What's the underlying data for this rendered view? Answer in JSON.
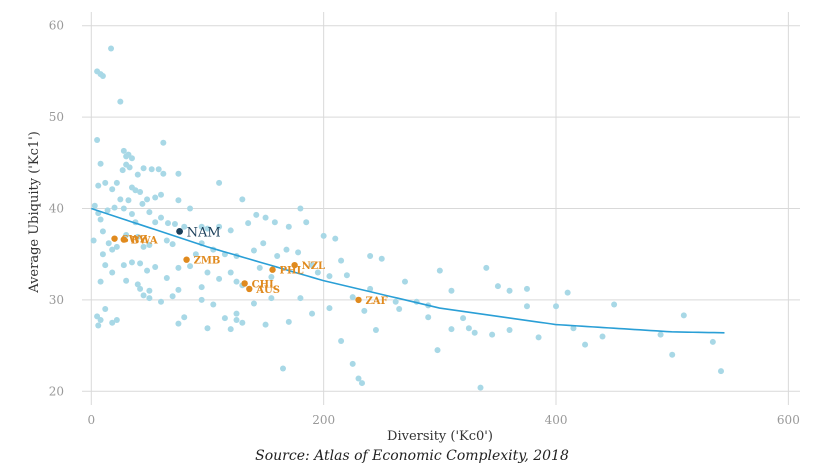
{
  "caption": "Source: Atlas of Economic Complexity, 2018",
  "colors": {
    "background": "#ffffff",
    "grid": "#d9d9d9",
    "point": "#a8d8e6",
    "highlight": "#e08a1e",
    "focus": "#1c3f5a",
    "fit": "#2a9fd6"
  },
  "chart_data": {
    "type": "scatter",
    "title": "",
    "xlabel": "Diversity ('Kc0')",
    "ylabel": "Average Ubiquity ('Kc1')",
    "xlim": [
      -8,
      610
    ],
    "ylim": [
      18.5,
      61.5
    ],
    "xticks": [
      0,
      200,
      400,
      600
    ],
    "yticks": [
      20,
      30,
      40,
      50,
      60
    ],
    "grid": true,
    "legend": "none",
    "fit_line": {
      "type": "quadratic",
      "x": [
        0,
        100,
        200,
        300,
        400,
        500,
        545
      ],
      "y": [
        40.0,
        35.8,
        32.1,
        29.1,
        27.3,
        26.5,
        26.4
      ]
    },
    "focus": [
      {
        "label": "NAM",
        "x": 76,
        "y": 37.5
      }
    ],
    "highlighted": [
      {
        "label": "BWA",
        "x": 28,
        "y": 36.6
      },
      {
        "label": "SWZ",
        "x": 20,
        "y": 36.7
      },
      {
        "label": "ZMB",
        "x": 82,
        "y": 34.4
      },
      {
        "label": "NZL",
        "x": 175,
        "y": 33.8
      },
      {
        "label": "PHL",
        "x": 156,
        "y": 33.3
      },
      {
        "label": "CHL",
        "x": 132,
        "y": 31.8
      },
      {
        "label": "AUS",
        "x": 136,
        "y": 31.2
      },
      {
        "label": "ZAF",
        "x": 230,
        "y": 30.0
      }
    ],
    "points": [
      [
        5,
        55.0
      ],
      [
        8,
        54.7
      ],
      [
        10,
        54.5
      ],
      [
        17,
        57.5
      ],
      [
        25,
        51.7
      ],
      [
        62,
        47.2
      ],
      [
        5,
        47.5
      ],
      [
        8,
        44.9
      ],
      [
        12,
        42.8
      ],
      [
        22,
        42.8
      ],
      [
        28,
        46.3
      ],
      [
        30,
        45.7
      ],
      [
        32,
        45.9
      ],
      [
        35,
        45.5
      ],
      [
        30,
        44.8
      ],
      [
        33,
        44.5
      ],
      [
        40,
        43.7
      ],
      [
        27,
        44.2
      ],
      [
        45,
        44.4
      ],
      [
        52,
        44.3
      ],
      [
        58,
        44.3
      ],
      [
        62,
        43.8
      ],
      [
        75,
        43.8
      ],
      [
        110,
        42.8
      ],
      [
        6,
        42.5
      ],
      [
        18,
        42.1
      ],
      [
        35,
        42.3
      ],
      [
        38,
        42.0
      ],
      [
        42,
        41.8
      ],
      [
        48,
        41.0
      ],
      [
        55,
        41.2
      ],
      [
        60,
        41.5
      ],
      [
        32,
        40.9
      ],
      [
        75,
        40.9
      ],
      [
        85,
        40.0
      ],
      [
        130,
        41.0
      ],
      [
        180,
        40.0
      ],
      [
        3,
        40.3
      ],
      [
        6,
        39.5
      ],
      [
        8,
        38.8
      ],
      [
        14,
        39.8
      ],
      [
        20,
        40.1
      ],
      [
        25,
        41.0
      ],
      [
        28,
        40.0
      ],
      [
        35,
        39.4
      ],
      [
        38,
        38.5
      ],
      [
        44,
        40.5
      ],
      [
        50,
        39.6
      ],
      [
        55,
        38.5
      ],
      [
        60,
        39.0
      ],
      [
        66,
        38.4
      ],
      [
        72,
        38.3
      ],
      [
        80,
        38.0
      ],
      [
        95,
        38.0
      ],
      [
        100,
        37.8
      ],
      [
        110,
        38.0
      ],
      [
        120,
        37.6
      ],
      [
        135,
        38.4
      ],
      [
        142,
        39.3
      ],
      [
        150,
        39.0
      ],
      [
        158,
        38.5
      ],
      [
        170,
        38.0
      ],
      [
        185,
        38.5
      ],
      [
        200,
        37.0
      ],
      [
        210,
        36.7
      ],
      [
        2,
        36.5
      ],
      [
        10,
        37.5
      ],
      [
        15,
        36.2
      ],
      [
        22,
        35.8
      ],
      [
        30,
        37.1
      ],
      [
        40,
        36.9
      ],
      [
        45,
        35.8
      ],
      [
        50,
        36.0
      ],
      [
        65,
        36.5
      ],
      [
        70,
        36.1
      ],
      [
        90,
        35.0
      ],
      [
        95,
        36.2
      ],
      [
        105,
        35.5
      ],
      [
        115,
        35.0
      ],
      [
        125,
        34.8
      ],
      [
        140,
        35.4
      ],
      [
        148,
        36.2
      ],
      [
        160,
        34.8
      ],
      [
        168,
        35.5
      ],
      [
        178,
        35.2
      ],
      [
        190,
        33.8
      ],
      [
        195,
        33.0
      ],
      [
        205,
        32.6
      ],
      [
        215,
        34.3
      ],
      [
        220,
        32.7
      ],
      [
        240,
        34.8
      ],
      [
        250,
        34.5
      ],
      [
        10,
        35.0
      ],
      [
        18,
        35.5
      ],
      [
        28,
        33.8
      ],
      [
        35,
        34.1
      ],
      [
        42,
        34.0
      ],
      [
        48,
        33.2
      ],
      [
        55,
        33.6
      ],
      [
        65,
        32.4
      ],
      [
        75,
        33.5
      ],
      [
        85,
        33.7
      ],
      [
        100,
        33.0
      ],
      [
        110,
        32.3
      ],
      [
        120,
        33.0
      ],
      [
        125,
        32.0
      ],
      [
        145,
        33.5
      ],
      [
        155,
        32.5
      ],
      [
        12,
        33.8
      ],
      [
        18,
        33.0
      ],
      [
        8,
        32.0
      ],
      [
        30,
        32.1
      ],
      [
        40,
        31.7
      ],
      [
        42,
        31.2
      ],
      [
        50,
        31.0
      ],
      [
        75,
        31.1
      ],
      [
        95,
        31.4
      ],
      [
        130,
        31.6
      ],
      [
        155,
        30.2
      ],
      [
        180,
        30.2
      ],
      [
        225,
        30.3
      ],
      [
        240,
        31.2
      ],
      [
        262,
        29.8
      ],
      [
        280,
        29.8
      ],
      [
        300,
        33.2
      ],
      [
        310,
        31.0
      ],
      [
        270,
        32.0
      ],
      [
        340,
        33.5
      ],
      [
        350,
        31.5
      ],
      [
        360,
        31.0
      ],
      [
        375,
        31.2
      ],
      [
        410,
        30.8
      ],
      [
        450,
        29.5
      ],
      [
        375,
        29.3
      ],
      [
        400,
        29.3
      ],
      [
        320,
        28.0
      ],
      [
        310,
        26.8
      ],
      [
        5,
        28.2
      ],
      [
        8,
        27.8
      ],
      [
        12,
        29.0
      ],
      [
        18,
        27.5
      ],
      [
        22,
        27.8
      ],
      [
        45,
        30.5
      ],
      [
        50,
        30.2
      ],
      [
        60,
        29.8
      ],
      [
        70,
        30.4
      ],
      [
        80,
        28.1
      ],
      [
        95,
        30.0
      ],
      [
        105,
        29.5
      ],
      [
        115,
        28.0
      ],
      [
        125,
        28.5
      ],
      [
        140,
        29.6
      ],
      [
        150,
        27.3
      ],
      [
        170,
        27.6
      ],
      [
        190,
        28.5
      ],
      [
        205,
        29.1
      ],
      [
        215,
        25.5
      ],
      [
        235,
        28.8
      ],
      [
        245,
        26.7
      ],
      [
        265,
        29.0
      ],
      [
        290,
        28.1
      ],
      [
        325,
        26.9
      ],
      [
        330,
        26.4
      ],
      [
        345,
        26.2
      ],
      [
        360,
        26.7
      ],
      [
        385,
        25.9
      ],
      [
        415,
        26.9
      ],
      [
        425,
        25.1
      ],
      [
        440,
        26.0
      ],
      [
        490,
        26.2
      ],
      [
        500,
        24.0
      ],
      [
        510,
        28.3
      ],
      [
        535,
        25.4
      ],
      [
        542,
        22.2
      ],
      [
        125,
        27.8
      ],
      [
        130,
        27.5
      ],
      [
        75,
        27.4
      ],
      [
        100,
        26.9
      ],
      [
        6,
        27.2
      ],
      [
        120,
        26.8
      ],
      [
        165,
        22.5
      ],
      [
        225,
        23.0
      ],
      [
        230,
        21.4
      ],
      [
        233,
        20.9
      ],
      [
        298,
        24.5
      ],
      [
        335,
        20.4
      ],
      [
        290,
        29.4
      ]
    ]
  }
}
